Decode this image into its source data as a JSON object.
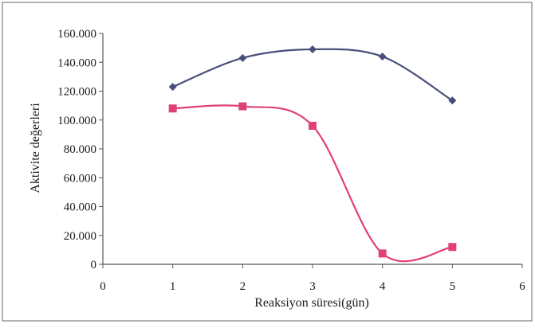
{
  "chart_data": {
    "type": "line",
    "title": "",
    "xlabel": "Reaksiyon süresi(gün)",
    "ylabel": "Aktivite değerleri",
    "xlim": [
      0,
      6
    ],
    "ylim": [
      0,
      160000
    ],
    "x_ticks": [
      "0",
      "1",
      "2",
      "3",
      "4",
      "5",
      "6"
    ],
    "y_ticks": [
      "0",
      "20.000",
      "40.000",
      "60.000",
      "80.000",
      "100.000",
      "120.000",
      "140.000",
      "160.000"
    ],
    "grid": false,
    "legend": "none",
    "smooth": true,
    "series": [
      {
        "color": "#4a4f7a",
        "marker": "diamond",
        "x": [
          1,
          2,
          3,
          4,
          5
        ],
        "values": [
          123000,
          143000,
          149000,
          144000,
          113500
        ]
      },
      {
        "color": "#e0407a",
        "marker": "square",
        "x": [
          1,
          2,
          3,
          4,
          5
        ],
        "values": [
          108000,
          109500,
          96000,
          7500,
          12000
        ]
      }
    ]
  }
}
